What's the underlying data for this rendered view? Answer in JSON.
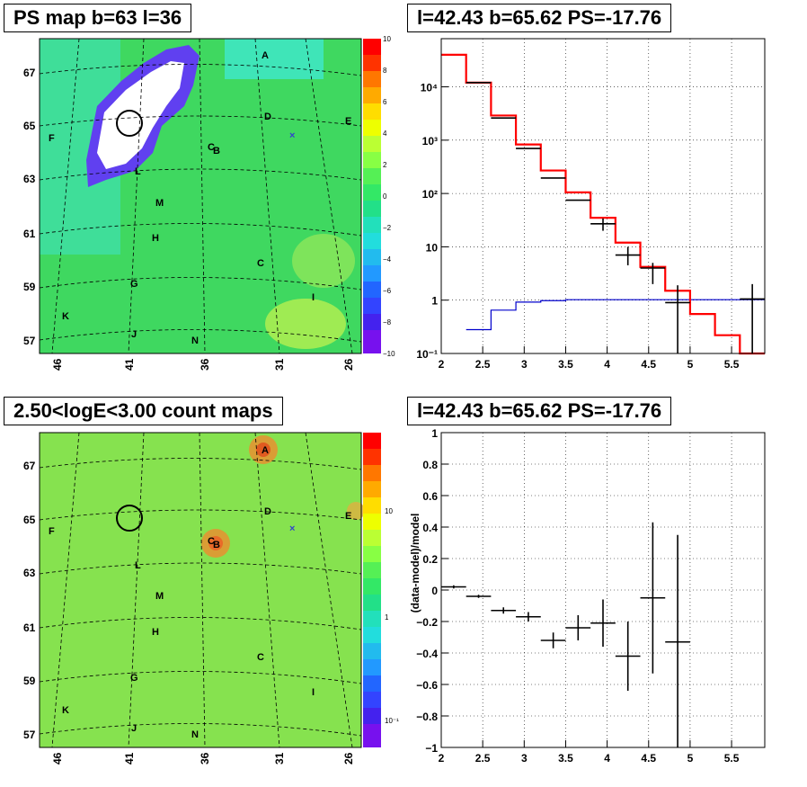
{
  "panels": {
    "ps_map": {
      "title": "PS map b=63 l=36"
    },
    "spectrum": {
      "title": "l=42.43 b=65.62 PS=-17.76"
    },
    "count_map": {
      "title": "2.50<logE<3.00 count maps"
    },
    "residual": {
      "title": "l=42.43 b=65.62 PS=-17.76"
    }
  },
  "colors": {
    "data": "#000000",
    "model": "#ff0000",
    "ratio": "#0000cc",
    "marker": "#3344cc"
  },
  "chart_data": [
    {
      "type": "heatmap",
      "title": "PS map b=63 l=36",
      "x_ticks": [
        "46",
        "41",
        "36",
        "31",
        "26"
      ],
      "y_ticks": [
        "67",
        "65",
        "63",
        "61",
        "59",
        "57"
      ],
      "colorbar_ticks": [
        "10",
        "8",
        "6",
        "4",
        "2",
        "0",
        "−2",
        "−4",
        "−6",
        "−8",
        "−10"
      ],
      "colorbar_range": [
        -10,
        10
      ],
      "source_labels": [
        "A",
        "B",
        "C",
        "C",
        "D",
        "E",
        "F",
        "G",
        "H",
        "I",
        "J",
        "K",
        "L",
        "M",
        "N"
      ],
      "marker": "×"
    },
    {
      "type": "line",
      "title": "l=42.43 b=65.62 PS=-17.76",
      "y_scale": "log",
      "xlim": [
        2,
        5.9
      ],
      "ylim": [
        0.1,
        80000
      ],
      "x_ticks": [
        "2",
        "2.5",
        "3",
        "3.5",
        "4",
        "4.5",
        "5",
        "5.5"
      ],
      "y_ticks": [
        "10⁻¹",
        "1",
        "10",
        "10²",
        "10³",
        "10⁴"
      ],
      "data_points": [
        {
          "x": 2.45,
          "y": 12000,
          "xerr": 0.15
        },
        {
          "x": 2.75,
          "y": 2600,
          "xerr": 0.15
        },
        {
          "x": 3.05,
          "y": 700,
          "xerr": 0.15
        },
        {
          "x": 3.35,
          "y": 195,
          "xerr": 0.15
        },
        {
          "x": 3.65,
          "y": 75,
          "xerr": 0.15
        },
        {
          "x": 3.95,
          "y": 27,
          "xerr": 0.15,
          "yerr": [
            20,
            34
          ]
        },
        {
          "x": 4.25,
          "y": 7,
          "xerr": 0.15,
          "yerr": [
            4.5,
            10
          ]
        },
        {
          "x": 4.55,
          "y": 4,
          "xerr": 0.15,
          "yerr": [
            2,
            5
          ]
        },
        {
          "x": 4.85,
          "y": 0.9,
          "xerr": 0.15,
          "yerr": [
            0.1,
            1.9
          ]
        },
        {
          "x": 5.75,
          "y": 1.05,
          "xerr": 0.15,
          "yerr": [
            0.1,
            2
          ]
        }
      ],
      "model_steps": [
        {
          "x0": 2.0,
          "x1": 2.3,
          "y": 40000
        },
        {
          "x0": 2.3,
          "x1": 2.6,
          "y": 12000
        },
        {
          "x0": 2.6,
          "x1": 2.9,
          "y": 2900
        },
        {
          "x0": 2.9,
          "x1": 3.2,
          "y": 830
        },
        {
          "x0": 3.2,
          "x1": 3.5,
          "y": 270
        },
        {
          "x0": 3.5,
          "x1": 3.8,
          "y": 105
        },
        {
          "x0": 3.8,
          "x1": 4.1,
          "y": 35
        },
        {
          "x0": 4.1,
          "x1": 4.4,
          "y": 12
        },
        {
          "x0": 4.4,
          "x1": 4.7,
          "y": 4.2
        },
        {
          "x0": 4.7,
          "x1": 5.0,
          "y": 1.5
        },
        {
          "x0": 5.0,
          "x1": 5.3,
          "y": 0.55
        },
        {
          "x0": 5.3,
          "x1": 5.6,
          "y": 0.22
        },
        {
          "x0": 5.6,
          "x1": 5.9,
          "y": 0.08
        }
      ],
      "ratio_steps": [
        {
          "x0": 2.3,
          "x1": 2.6,
          "y": 0.28
        },
        {
          "x0": 2.6,
          "x1": 2.9,
          "y": 0.65
        },
        {
          "x0": 2.9,
          "x1": 3.2,
          "y": 0.92
        },
        {
          "x0": 3.2,
          "x1": 3.5,
          "y": 0.98
        },
        {
          "x0": 3.5,
          "x1": 5.9,
          "y": 1.02
        }
      ]
    },
    {
      "type": "heatmap",
      "title": "2.50<logE<3.00 count maps",
      "x_ticks": [
        "46",
        "41",
        "36",
        "31",
        "26"
      ],
      "y_ticks": [
        "67",
        "65",
        "63",
        "61",
        "59",
        "57"
      ],
      "colorbar_ticks": [
        "10",
        "1",
        "10⁻¹"
      ],
      "colorbar_scale": "log",
      "source_labels": [
        "A",
        "B",
        "C",
        "C",
        "D",
        "E",
        "F",
        "G",
        "H",
        "I",
        "J",
        "K",
        "L",
        "M",
        "N"
      ],
      "marker": "×"
    },
    {
      "type": "scatter",
      "title": "l=42.43 b=65.62 PS=-17.76",
      "ylabel": "(data-model)/model",
      "xlim": [
        2,
        5.9
      ],
      "ylim": [
        -1,
        1
      ],
      "x_ticks": [
        "2",
        "2.5",
        "3",
        "3.5",
        "4",
        "4.5",
        "5",
        "5.5"
      ],
      "y_ticks": [
        "1",
        "0.8",
        "0.6",
        "0.4",
        "0.2",
        "0",
        "−0.2",
        "−0.4",
        "−0.6",
        "−0.8",
        "−1"
      ],
      "points": [
        {
          "x": 2.15,
          "y": 0.02,
          "xerr": 0.15,
          "yerr": 0.01
        },
        {
          "x": 2.45,
          "y": -0.04,
          "xerr": 0.15,
          "yerr": 0.01
        },
        {
          "x": 2.75,
          "y": -0.13,
          "xerr": 0.15,
          "yerr": 0.02
        },
        {
          "x": 3.05,
          "y": -0.17,
          "xerr": 0.15,
          "yerr": 0.03
        },
        {
          "x": 3.35,
          "y": -0.32,
          "xerr": 0.15,
          "yerr": 0.05
        },
        {
          "x": 3.65,
          "y": -0.24,
          "xerr": 0.15,
          "yerr": 0.08
        },
        {
          "x": 3.95,
          "y": -0.21,
          "xerr": 0.15,
          "yerr": 0.15
        },
        {
          "x": 4.25,
          "y": -0.42,
          "xerr": 0.15,
          "yerr": 0.22
        },
        {
          "x": 4.55,
          "y": -0.05,
          "xerr": 0.15,
          "yerr": 0.48
        },
        {
          "x": 4.85,
          "y": -0.33,
          "xerr": 0.15,
          "yerr": 0.68
        }
      ]
    }
  ]
}
